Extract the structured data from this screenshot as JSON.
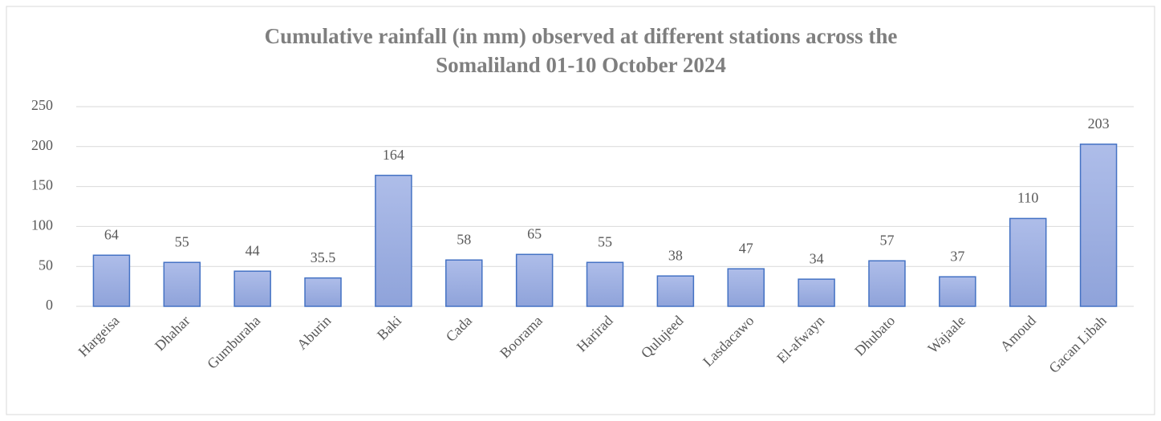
{
  "chart_data": {
    "type": "bar",
    "title": [
      "Cumulative  rainfall  (in  mm)  observed  at  different  stations  across  the",
      "Somaliland    01-10  October  2024"
    ],
    "categories": [
      "Hargeisa",
      "Dhahar",
      "Gumburaha",
      "Aburin",
      "Baki",
      "Cada",
      "Boorama",
      "Harirad",
      "Qulujeed",
      "Lasdacawo",
      "El-afwayn",
      "Dhubato",
      "Wajaale",
      "Amoud",
      "Gacan Libah"
    ],
    "values": [
      64,
      55,
      44,
      35.5,
      164,
      58,
      65,
      55,
      38,
      47,
      34,
      57,
      37,
      110,
      203
    ],
    "color": "#9aadde",
    "ylim": [
      0,
      250
    ],
    "yticks": [
      0,
      50,
      100,
      150,
      200,
      250
    ],
    "grid": true
  }
}
